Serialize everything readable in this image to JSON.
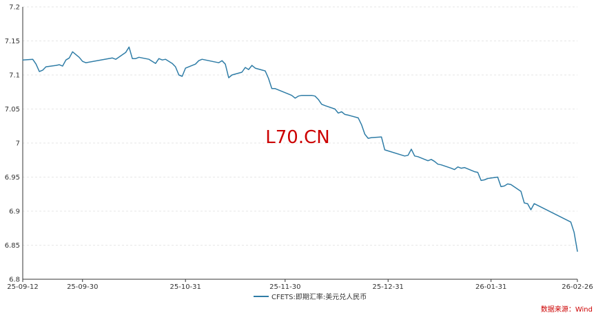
{
  "chart_data": {
    "type": "line",
    "title": "",
    "xlabel": "",
    "ylabel": "",
    "ylim": [
      6.8,
      7.2
    ],
    "y_ticks": [
      "7.2",
      "7.15",
      "7.1",
      "7.05",
      "7",
      "6.95",
      "6.9",
      "6.85",
      "6.8"
    ],
    "y_tick_values": [
      7.2,
      7.15,
      7.1,
      7.05,
      7.0,
      6.95,
      6.9,
      6.85,
      6.8
    ],
    "x_ticks": [
      "25-09-12",
      "25-09-30",
      "25-10-31",
      "25-11-30",
      "25-12-31",
      "26-01-31",
      "26-02-26"
    ],
    "x_tick_dates": [
      "2025-09-12",
      "2025-09-30",
      "2025-10-31",
      "2025-11-30",
      "2025-12-31",
      "2026-01-31",
      "2026-02-26"
    ],
    "grid": "horizontal dashed",
    "legend_position": "bottom",
    "series": [
      {
        "name": "CFETS:即期汇率:美元兑人民币",
        "color": "#2e7ca6",
        "points": [
          [
            "2025-09-12",
            7.122
          ],
          [
            "2025-09-15",
            7.123
          ],
          [
            "2025-09-16",
            7.116
          ],
          [
            "2025-09-17",
            7.105
          ],
          [
            "2025-09-18",
            7.107
          ],
          [
            "2025-09-19",
            7.112
          ],
          [
            "2025-09-22",
            7.114
          ],
          [
            "2025-09-23",
            7.115
          ],
          [
            "2025-09-24",
            7.113
          ],
          [
            "2025-09-25",
            7.122
          ],
          [
            "2025-09-26",
            7.125
          ],
          [
            "2025-09-27",
            7.134
          ],
          [
            "2025-09-29",
            7.126
          ],
          [
            "2025-09-30",
            7.12
          ],
          [
            "2025-10-01",
            7.118
          ],
          [
            "2025-10-09",
            7.125
          ],
          [
            "2025-10-10",
            7.123
          ],
          [
            "2025-10-13",
            7.133
          ],
          [
            "2025-10-14",
            7.141
          ],
          [
            "2025-10-15",
            7.124
          ],
          [
            "2025-10-16",
            7.124
          ],
          [
            "2025-10-17",
            7.126
          ],
          [
            "2025-10-20",
            7.123
          ],
          [
            "2025-10-21",
            7.12
          ],
          [
            "2025-10-22",
            7.117
          ],
          [
            "2025-10-23",
            7.124
          ],
          [
            "2025-10-24",
            7.122
          ],
          [
            "2025-10-25",
            7.123
          ],
          [
            "2025-10-27",
            7.117
          ],
          [
            "2025-10-28",
            7.112
          ],
          [
            "2025-10-29",
            7.1
          ],
          [
            "2025-10-30",
            7.098
          ],
          [
            "2025-10-31",
            7.11
          ],
          [
            "2025-11-03",
            7.116
          ],
          [
            "2025-11-04",
            7.121
          ],
          [
            "2025-11-05",
            7.123
          ],
          [
            "2025-11-06",
            7.122
          ],
          [
            "2025-11-07",
            7.121
          ],
          [
            "2025-11-10",
            7.118
          ],
          [
            "2025-11-11",
            7.121
          ],
          [
            "2025-11-12",
            7.116
          ],
          [
            "2025-11-13",
            7.096
          ],
          [
            "2025-11-14",
            7.1
          ],
          [
            "2025-11-17",
            7.104
          ],
          [
            "2025-11-18",
            7.111
          ],
          [
            "2025-11-19",
            7.108
          ],
          [
            "2025-11-20",
            7.114
          ],
          [
            "2025-11-21",
            7.11
          ],
          [
            "2025-11-24",
            7.106
          ],
          [
            "2025-11-25",
            7.095
          ],
          [
            "2025-11-26",
            7.08
          ],
          [
            "2025-11-27",
            7.08
          ],
          [
            "2025-11-28",
            7.078
          ],
          [
            "2025-12-01",
            7.072
          ],
          [
            "2025-12-02",
            7.07
          ],
          [
            "2025-12-03",
            7.066
          ],
          [
            "2025-12-04",
            7.069
          ],
          [
            "2025-12-05",
            7.07
          ],
          [
            "2025-12-08",
            7.07
          ],
          [
            "2025-12-09",
            7.069
          ],
          [
            "2025-12-10",
            7.064
          ],
          [
            "2025-12-11",
            7.057
          ],
          [
            "2025-12-12",
            7.055
          ],
          [
            "2025-12-15",
            7.05
          ],
          [
            "2025-12-16",
            7.044
          ],
          [
            "2025-12-17",
            7.046
          ],
          [
            "2025-12-18",
            7.042
          ],
          [
            "2025-12-19",
            7.041
          ],
          [
            "2025-12-22",
            7.037
          ],
          [
            "2025-12-23",
            7.027
          ],
          [
            "2025-12-24",
            7.013
          ],
          [
            "2025-12-25",
            7.007
          ],
          [
            "2025-12-26",
            7.008
          ],
          [
            "2025-12-29",
            7.009
          ],
          [
            "2025-12-30",
            6.99
          ],
          [
            "2026-01-05",
            6.981
          ],
          [
            "2026-01-06",
            6.982
          ],
          [
            "2026-01-07",
            6.991
          ],
          [
            "2026-01-08",
            6.981
          ],
          [
            "2026-01-09",
            6.98
          ],
          [
            "2026-01-12",
            6.974
          ],
          [
            "2026-01-13",
            6.976
          ],
          [
            "2026-01-14",
            6.973
          ],
          [
            "2026-01-15",
            6.969
          ],
          [
            "2026-01-16",
            6.968
          ],
          [
            "2026-01-19",
            6.963
          ],
          [
            "2026-01-20",
            6.961
          ],
          [
            "2026-01-21",
            6.965
          ],
          [
            "2026-01-22",
            6.963
          ],
          [
            "2026-01-23",
            6.964
          ],
          [
            "2026-01-26",
            6.958
          ],
          [
            "2026-01-27",
            6.957
          ],
          [
            "2026-01-28",
            6.945
          ],
          [
            "2026-01-29",
            6.946
          ],
          [
            "2026-01-30",
            6.948
          ],
          [
            "2026-02-02",
            6.95
          ],
          [
            "2026-02-03",
            6.936
          ],
          [
            "2026-02-04",
            6.937
          ],
          [
            "2026-02-05",
            6.94
          ],
          [
            "2026-02-06",
            6.939
          ],
          [
            "2026-02-09",
            6.929
          ],
          [
            "2026-02-10",
            6.912
          ],
          [
            "2026-02-11",
            6.911
          ],
          [
            "2026-02-12",
            6.902
          ],
          [
            "2026-02-13",
            6.911
          ],
          [
            "2026-02-24",
            6.884
          ],
          [
            "2026-02-25",
            6.869
          ],
          [
            "2026-02-26",
            6.841
          ]
        ]
      }
    ]
  },
  "legend": {
    "label": "CFETS:即期汇率:美元兑人民币"
  },
  "watermark": {
    "text": "L70.CN"
  },
  "source": {
    "text": "数据来源：Wind"
  }
}
